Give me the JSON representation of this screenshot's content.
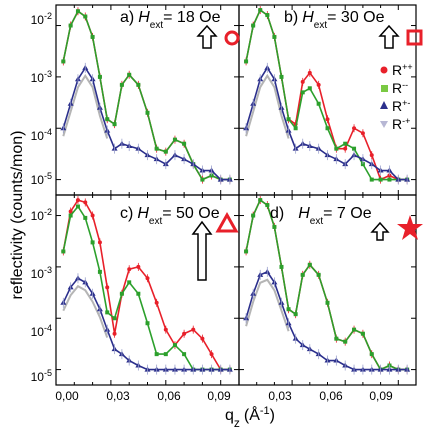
{
  "ylabel": "reflectivity (counts/mon)",
  "xlabel": "q",
  "xlabel_sub": "z",
  "xlabel_unit": "(Å",
  "xlabel_unit_sup": "-1",
  "xlabel_unit_close": ")",
  "x_ticks": [
    "0,00",
    "0,03",
    "0,06",
    "0,09"
  ],
  "y_ticks": [
    {
      "base": "10",
      "exp": "-2"
    },
    {
      "base": "10",
      "exp": "-3"
    },
    {
      "base": "10",
      "exp": "-4"
    },
    {
      "base": "10",
      "exp": "-5"
    }
  ],
  "legend": [
    {
      "label": "R",
      "sup": "++",
      "color": "#e8202a",
      "marker": "circle"
    },
    {
      "label": "R",
      "sup": "--",
      "color": "#7ac943",
      "marker": "square"
    },
    {
      "label": "R",
      "sup": "+-",
      "color": "#2b2f8c",
      "marker": "triangle"
    },
    {
      "label": "R",
      "sup": "-+",
      "color": "#b7b7d4",
      "marker": "triangle-down"
    }
  ],
  "panels": [
    {
      "label": "a)",
      "field_symbol": "H",
      "field_sub": "ext",
      "field_value": "= 18 Oe",
      "symbol": "circle"
    },
    {
      "label": "b)",
      "field_symbol": "H",
      "field_sub": "ext",
      "field_value": "= 30 Oe",
      "symbol": "square"
    },
    {
      "label": "c)",
      "field_symbol": "H",
      "field_sub": "ext",
      "field_value": "= 50 Oe",
      "symbol": "triangle"
    },
    {
      "label": "d)",
      "field_symbol": "H",
      "field_sub": "ext",
      "field_value": "= 7 Oe",
      "symbol": "star"
    }
  ],
  "colors": {
    "Rpp": "#e8202a",
    "Rmm": "#2ca02c",
    "Rpm": "#2b2f8c",
    "Rmp": "#9aa0cc",
    "fit_gray": "#b5b5b5",
    "symbol_red": "#e8202a"
  },
  "chart_data": [
    {
      "type": "line",
      "panel": "a",
      "xlim": [
        0.0,
        0.1
      ],
      "ylim_log10": [
        -5.3,
        -1.6
      ],
      "log_y": true,
      "series": [
        {
          "name": "R++",
          "x": [
            0.004,
            0.008,
            0.012,
            0.016,
            0.02,
            0.024,
            0.028,
            0.032,
            0.036,
            0.04,
            0.045,
            0.05,
            0.055,
            0.06,
            0.065,
            0.07,
            0.075,
            0.08,
            0.085,
            0.09,
            0.095
          ],
          "y": [
            0.002,
            0.01,
            0.019,
            0.015,
            0.006,
            0.001,
            0.00015,
            0.00012,
            0.0007,
            0.0011,
            0.0007,
            0.0002,
            4e-05,
            3.5e-05,
            6e-05,
            5e-05,
            2e-05,
            1e-05,
            1.2e-05,
            1e-05,
            1e-05
          ]
        },
        {
          "name": "R--",
          "x": [
            0.004,
            0.008,
            0.012,
            0.016,
            0.02,
            0.024,
            0.028,
            0.032,
            0.036,
            0.04,
            0.045,
            0.05,
            0.055,
            0.06,
            0.065,
            0.07,
            0.075,
            0.08,
            0.085,
            0.09,
            0.095
          ],
          "y": [
            0.002,
            0.01,
            0.019,
            0.015,
            0.006,
            0.001,
            0.00015,
            0.00012,
            0.0007,
            0.0011,
            0.0007,
            0.0002,
            4e-05,
            3.5e-05,
            6e-05,
            5e-05,
            2e-05,
            1e-05,
            1.2e-05,
            1e-05,
            1e-05
          ]
        },
        {
          "name": "R+-",
          "x": [
            0.004,
            0.008,
            0.012,
            0.016,
            0.02,
            0.024,
            0.028,
            0.032,
            0.036,
            0.04,
            0.045,
            0.05,
            0.055,
            0.06,
            0.065,
            0.07,
            0.075,
            0.08,
            0.085,
            0.09,
            0.095
          ],
          "y": [
            0.0001,
            0.0003,
            0.0009,
            0.0015,
            0.0009,
            0.00025,
            9e-05,
            4e-05,
            5e-05,
            4.5e-05,
            4e-05,
            3e-05,
            2.5e-05,
            2e-05,
            3e-05,
            2.5e-05,
            2e-05,
            1.5e-05,
            1.5e-05,
            1e-05,
            1e-05
          ]
        }
      ]
    },
    {
      "type": "line",
      "panel": "b",
      "xlim": [
        0.0,
        0.1
      ],
      "ylim_log10": [
        -5.3,
        -1.6
      ],
      "log_y": true,
      "series": [
        {
          "name": "R++",
          "x": [
            0.004,
            0.008,
            0.012,
            0.016,
            0.02,
            0.024,
            0.028,
            0.032,
            0.036,
            0.04,
            0.045,
            0.05,
            0.055,
            0.06,
            0.065,
            0.07,
            0.075,
            0.08,
            0.085,
            0.09,
            0.095
          ],
          "y": [
            0.002,
            0.01,
            0.02,
            0.016,
            0.006,
            0.001,
            0.00015,
            0.00012,
            0.0008,
            0.0012,
            0.0007,
            0.00015,
            4e-05,
            4e-05,
            0.0001,
            8e-05,
            3e-05,
            1e-05,
            1.2e-05,
            1e-05,
            1e-05
          ]
        },
        {
          "name": "R--",
          "x": [
            0.004,
            0.008,
            0.012,
            0.016,
            0.02,
            0.024,
            0.028,
            0.032,
            0.036,
            0.04,
            0.045,
            0.05,
            0.055,
            0.06,
            0.065,
            0.07,
            0.075,
            0.08,
            0.085,
            0.09,
            0.095
          ],
          "y": [
            0.002,
            0.01,
            0.02,
            0.016,
            0.006,
            0.001,
            0.00015,
            0.0001,
            0.0005,
            0.0006,
            0.0003,
            0.0001,
            4e-05,
            5e-05,
            4e-05,
            2e-05,
            1e-05,
            1e-05,
            1e-05,
            1e-05,
            1e-05
          ]
        },
        {
          "name": "R+-",
          "x": [
            0.004,
            0.008,
            0.012,
            0.016,
            0.02,
            0.024,
            0.028,
            0.032,
            0.036,
            0.04,
            0.045,
            0.05,
            0.055,
            0.06,
            0.065,
            0.07,
            0.075,
            0.08,
            0.085,
            0.09,
            0.095
          ],
          "y": [
            0.0001,
            0.0003,
            0.0009,
            0.0015,
            0.0009,
            0.00025,
            9e-05,
            4e-05,
            5e-05,
            4.5e-05,
            4e-05,
            3e-05,
            2.5e-05,
            2e-05,
            3e-05,
            2.5e-05,
            2e-05,
            1.5e-05,
            1.5e-05,
            1e-05,
            1e-05
          ]
        }
      ]
    },
    {
      "type": "line",
      "panel": "c",
      "xlim": [
        0.0,
        0.1
      ],
      "ylim_log10": [
        -5.3,
        -1.6
      ],
      "log_y": true,
      "series": [
        {
          "name": "R++",
          "x": [
            0.004,
            0.008,
            0.012,
            0.016,
            0.02,
            0.024,
            0.028,
            0.032,
            0.036,
            0.04,
            0.045,
            0.05,
            0.055,
            0.06,
            0.065,
            0.07,
            0.075,
            0.08,
            0.085,
            0.09,
            0.095
          ],
          "y": [
            0.002,
            0.012,
            0.02,
            0.018,
            0.01,
            0.003,
            0.0004,
            5e-05,
            0.0003,
            0.0009,
            0.001,
            0.0006,
            0.0002,
            6e-05,
            3e-05,
            5e-05,
            6e-05,
            4e-05,
            2e-05,
            1e-05,
            1e-05
          ]
        },
        {
          "name": "R--",
          "x": [
            0.004,
            0.008,
            0.012,
            0.016,
            0.02,
            0.024,
            0.028,
            0.032,
            0.036,
            0.04,
            0.045,
            0.05,
            0.055,
            0.06,
            0.065,
            0.07,
            0.075,
            0.08,
            0.085,
            0.09,
            0.095
          ],
          "y": [
            0.002,
            0.01,
            0.015,
            0.009,
            0.003,
            0.0008,
            0.00013,
            0.0001,
            0.0003,
            0.0005,
            0.0003,
            8e-05,
            2e-05,
            2e-05,
            3e-05,
            2e-05,
            1e-05,
            1e-05,
            1e-05,
            1e-05,
            1e-05
          ]
        },
        {
          "name": "R+-",
          "x": [
            0.004,
            0.008,
            0.012,
            0.016,
            0.02,
            0.024,
            0.028,
            0.032,
            0.036,
            0.04,
            0.045,
            0.05,
            0.055,
            0.06,
            0.065,
            0.07,
            0.075,
            0.08,
            0.085,
            0.09,
            0.095
          ],
          "y": [
            0.0002,
            0.0004,
            0.0006,
            0.0005,
            0.0003,
            0.00015,
            6e-05,
            2.5e-05,
            2e-05,
            1.5e-05,
            1.2e-05,
            1e-05,
            1e-05,
            1e-05,
            1e-05,
            1e-05,
            1e-05,
            1e-05,
            1e-05,
            1e-05,
            1e-05
          ]
        }
      ]
    },
    {
      "type": "line",
      "panel": "d",
      "xlim": [
        0.0,
        0.1
      ],
      "ylim_log10": [
        -5.3,
        -1.6
      ],
      "log_y": true,
      "series": [
        {
          "name": "R++",
          "x": [
            0.004,
            0.008,
            0.012,
            0.016,
            0.02,
            0.024,
            0.028,
            0.032,
            0.036,
            0.04,
            0.045,
            0.05,
            0.055,
            0.06,
            0.065,
            0.07,
            0.075,
            0.08,
            0.085,
            0.09,
            0.095
          ],
          "y": [
            0.002,
            0.01,
            0.02,
            0.016,
            0.006,
            0.001,
            0.00015,
            0.00012,
            0.0007,
            0.0011,
            0.0007,
            0.0002,
            4e-05,
            3.5e-05,
            6e-05,
            5e-05,
            2e-05,
            1e-05,
            1.2e-05,
            1e-05,
            1e-05
          ]
        },
        {
          "name": "R--",
          "x": [
            0.004,
            0.008,
            0.012,
            0.016,
            0.02,
            0.024,
            0.028,
            0.032,
            0.036,
            0.04,
            0.045,
            0.05,
            0.055,
            0.06,
            0.065,
            0.07,
            0.075,
            0.08,
            0.085,
            0.09,
            0.095
          ],
          "y": [
            0.002,
            0.01,
            0.02,
            0.016,
            0.006,
            0.001,
            0.00015,
            0.00012,
            0.0007,
            0.0011,
            0.0007,
            0.0002,
            4e-05,
            3.5e-05,
            6e-05,
            5e-05,
            2e-05,
            1e-05,
            1.2e-05,
            1e-05,
            1e-05
          ]
        },
        {
          "name": "R+-",
          "x": [
            0.004,
            0.008,
            0.012,
            0.016,
            0.02,
            0.024,
            0.028,
            0.032,
            0.036,
            0.04,
            0.045,
            0.05,
            0.055,
            0.06,
            0.065,
            0.07,
            0.075,
            0.08,
            0.085,
            0.09,
            0.095
          ],
          "y": [
            0.0001,
            0.0003,
            0.0007,
            0.0008,
            0.0005,
            0.0002,
            8e-05,
            4e-05,
            3e-05,
            2.5e-05,
            2e-05,
            1.5e-05,
            1.5e-05,
            1.2e-05,
            1e-05,
            1e-05,
            1e-05,
            1e-05,
            1e-05,
            1e-05,
            1e-05
          ]
        }
      ]
    }
  ]
}
